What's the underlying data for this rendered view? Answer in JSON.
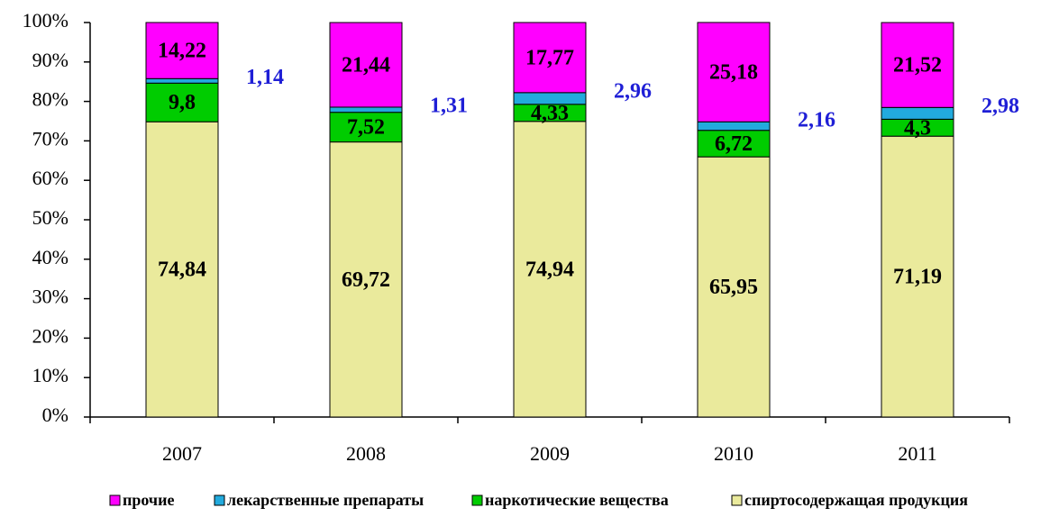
{
  "chart_data": {
    "type": "stacked_bar",
    "categories": [
      "2007",
      "2008",
      "2009",
      "2010",
      "2011"
    ],
    "series": [
      {
        "name": "спиртосодержащая продукция",
        "color": "#eaea9c",
        "values": [
          74.84,
          69.72,
          74.94,
          65.95,
          71.19
        ],
        "value_labels": [
          "74,84",
          "69,72",
          "74,94",
          "65,95",
          "71,19"
        ]
      },
      {
        "name": "наркотические вещества",
        "color": "#00cc00",
        "values": [
          9.8,
          7.52,
          4.33,
          6.72,
          4.3
        ],
        "value_labels": [
          "9,8",
          "7,52",
          "4,33",
          "6,72",
          "4,3"
        ]
      },
      {
        "name": "лекарственные препараты",
        "color": "#22aadd",
        "values": [
          1.14,
          1.31,
          2.96,
          2.16,
          2.98
        ],
        "value_labels": [
          "1,14",
          "1,31",
          "2,96",
          "2,16",
          "2,98"
        ]
      },
      {
        "name": "прочие",
        "color": "#ff00ff",
        "values": [
          14.22,
          21.44,
          17.77,
          25.18,
          21.52
        ],
        "value_labels": [
          "14,22",
          "21,44",
          "17,77",
          "25,18",
          "21,52"
        ]
      }
    ],
    "ylim": [
      0,
      100
    ],
    "yticks": [
      {
        "value": 0,
        "label": "0%"
      },
      {
        "value": 10,
        "label": "10%"
      },
      {
        "value": 20,
        "label": "20%"
      },
      {
        "value": 30,
        "label": "30%"
      },
      {
        "value": 40,
        "label": "40%"
      },
      {
        "value": 50,
        "label": "50%"
      },
      {
        "value": 60,
        "label": "60%"
      },
      {
        "value": 70,
        "label": "70%"
      },
      {
        "value": 80,
        "label": "80%"
      },
      {
        "value": 90,
        "label": "90%"
      },
      {
        "value": 100,
        "label": "100%"
      }
    ],
    "legend": "bottom"
  }
}
